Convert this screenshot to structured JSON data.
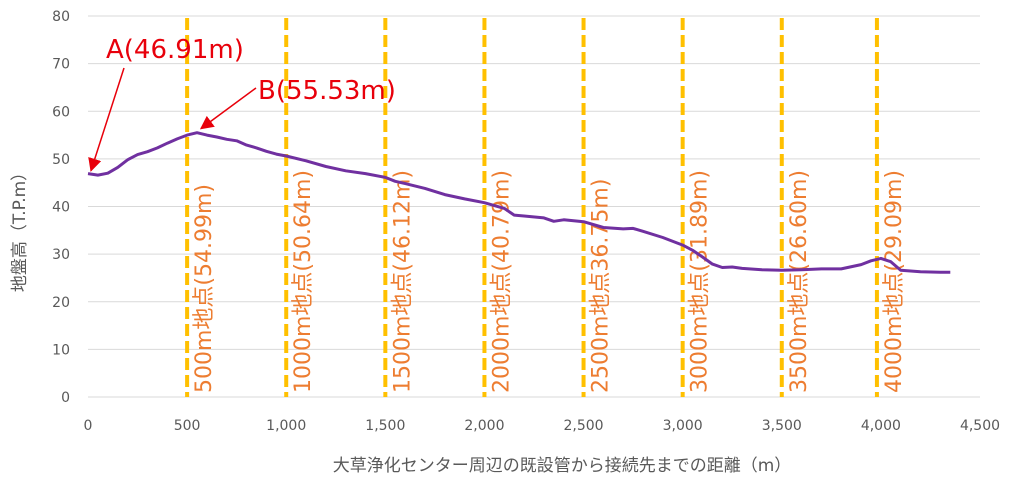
{
  "chart_data": {
    "type": "line",
    "xlabel": "大草浄化センター周辺の既設管から接続先までの距離（m）",
    "ylabel": "地盤高（T.P.m）",
    "xlim": [
      0,
      4500
    ],
    "ylim": [
      0,
      80
    ],
    "x_ticks": [
      0,
      500,
      1000,
      1500,
      2000,
      2500,
      3000,
      3500,
      4000,
      4500
    ],
    "x_tick_labels": [
      "0",
      "500",
      "1,000",
      "1,500",
      "2,000",
      "2,500",
      "3,000",
      "3,500",
      "4,000",
      "4,500"
    ],
    "y_ticks": [
      0,
      10,
      20,
      30,
      40,
      50,
      60,
      70,
      80
    ],
    "y_tick_labels": [
      "0",
      "10",
      "20",
      "30",
      "40",
      "50",
      "60",
      "70",
      "80"
    ],
    "grid": "horizontal",
    "series": [
      {
        "color": "#7030A0",
        "x": [
          0,
          50,
          100,
          150,
          200,
          250,
          300,
          350,
          400,
          450,
          500,
          550,
          600,
          650,
          700,
          750,
          800,
          850,
          900,
          950,
          1000,
          1100,
          1200,
          1300,
          1400,
          1500,
          1550,
          1600,
          1700,
          1800,
          1900,
          2000,
          2100,
          2150,
          2200,
          2300,
          2350,
          2400,
          2500,
          2600,
          2700,
          2750,
          2800,
          2900,
          3000,
          3050,
          3100,
          3150,
          3200,
          3250,
          3300,
          3400,
          3500,
          3600,
          3700,
          3800,
          3900,
          3950,
          4000,
          4050,
          4100,
          4200,
          4300,
          4350
        ],
        "y": [
          46.9,
          46.6,
          47.0,
          48.2,
          49.8,
          50.9,
          51.5,
          52.3,
          53.3,
          54.2,
          55.0,
          55.5,
          55.0,
          54.6,
          54.1,
          53.8,
          52.9,
          52.3,
          51.6,
          51.0,
          50.6,
          49.6,
          48.4,
          47.5,
          46.9,
          46.1,
          45.3,
          44.8,
          43.8,
          42.5,
          41.6,
          40.8,
          39.6,
          38.2,
          38.0,
          37.6,
          36.9,
          37.2,
          36.8,
          35.6,
          35.3,
          35.4,
          34.8,
          33.5,
          31.9,
          30.8,
          29.4,
          27.9,
          27.2,
          27.3,
          27.0,
          26.7,
          26.6,
          26.7,
          26.9,
          26.9,
          27.8,
          28.6,
          29.1,
          28.4,
          26.6,
          26.3,
          26.2,
          26.2
        ]
      }
    ],
    "markers": [
      {
        "x": 500,
        "label": "500m地点(54.99m)"
      },
      {
        "x": 1000,
        "label": "1000m地点(50.64m)"
      },
      {
        "x": 1500,
        "label": "1500m地点(46.12m)"
      },
      {
        "x": 2000,
        "label": "2000m地点(40.79m)"
      },
      {
        "x": 2500,
        "label": "2500m地点36.75m)"
      },
      {
        "x": 3000,
        "label": "3000m地点(31.89m)"
      },
      {
        "x": 3500,
        "label": "3500m地点(26.60m)"
      },
      {
        "x": 3980,
        "label": "4000m地点(29.09m)"
      }
    ],
    "annotations": [
      {
        "label": "A(46.91m)",
        "x": 0,
        "y": 46.91
      },
      {
        "label": "B(55.53m)",
        "x": 550,
        "y": 55.53
      }
    ],
    "colors": {
      "line": "#7030A0",
      "marker_line": "#FFC000",
      "marker_text": "#ED7D31",
      "annotation": "#E8000B",
      "grid": "#D9D9D9",
      "tick_text": "#595959"
    }
  }
}
